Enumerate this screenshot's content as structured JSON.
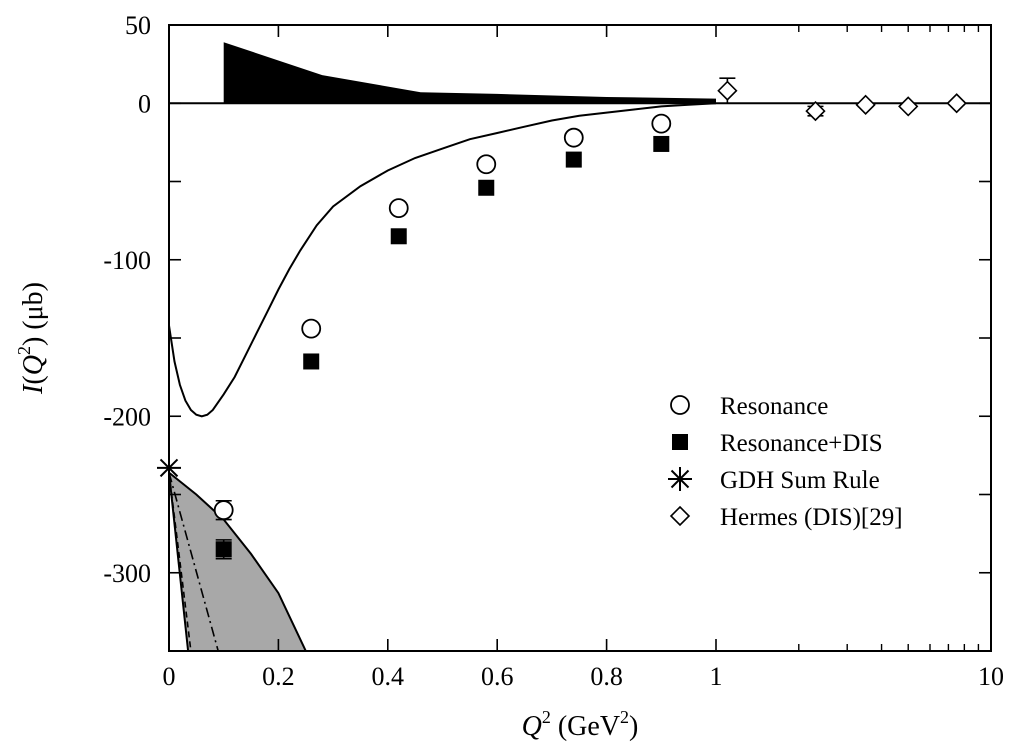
{
  "chart_data": {
    "type": "scatter",
    "title": "",
    "xlabel": {
      "var": "Q",
      "sup": "2",
      "unit_open": " (GeV",
      "unit_sup": "2",
      "unit_close": ")"
    },
    "ylabel": {
      "var": "I",
      "open": "(",
      "inner": "Q",
      "sup": "2",
      "close": ") (μb)"
    },
    "x_scale": "linear from 0 to 1, logarithmic from 1 to 10",
    "ylim": [
      -350,
      50
    ],
    "xticks": [
      {
        "value": 0,
        "label": "0"
      },
      {
        "value": 0.2,
        "label": "0.2"
      },
      {
        "value": 0.4,
        "label": "0.4"
      },
      {
        "value": 0.6,
        "label": "0.6"
      },
      {
        "value": 0.8,
        "label": "0.8"
      },
      {
        "value": 1,
        "label": "1"
      },
      {
        "value": 10,
        "label": "10"
      }
    ],
    "x_minor_ticks": [
      2,
      3,
      4,
      5,
      6,
      7,
      8,
      9
    ],
    "yticks": [
      {
        "value": 50,
        "label": "50"
      },
      {
        "value": 0,
        "label": "0"
      },
      {
        "value": -50,
        "label": ""
      },
      {
        "value": -100,
        "label": "-100"
      },
      {
        "value": -150,
        "label": ""
      },
      {
        "value": -200,
        "label": "-200"
      },
      {
        "value": -250,
        "label": ""
      },
      {
        "value": -300,
        "label": "-300"
      }
    ],
    "grid": false,
    "legend_position": "right, middle",
    "series": [
      {
        "name": "Resonance",
        "marker": "open-circle",
        "points": [
          {
            "x": 0.1,
            "y": -260,
            "err": 6
          },
          {
            "x": 0.26,
            "y": -144
          },
          {
            "x": 0.42,
            "y": -67
          },
          {
            "x": 0.58,
            "y": -39
          },
          {
            "x": 0.74,
            "y": -22
          },
          {
            "x": 0.9,
            "y": -13
          }
        ]
      },
      {
        "name": "Resonance+DIS",
        "marker": "filled-square",
        "points": [
          {
            "x": 0.1,
            "y": -285,
            "err": 6
          },
          {
            "x": 0.26,
            "y": -165
          },
          {
            "x": 0.42,
            "y": -85
          },
          {
            "x": 0.58,
            "y": -54
          },
          {
            "x": 0.74,
            "y": -36
          },
          {
            "x": 0.9,
            "y": -26
          }
        ]
      },
      {
        "name": "GDH Sum Rule",
        "marker": "asterisk",
        "points": [
          {
            "x": 0,
            "y": -233
          }
        ]
      },
      {
        "name": "Hermes (DIS)[29]",
        "marker": "open-diamond",
        "points": [
          {
            "x": 1.1,
            "y": 8,
            "err": 8
          },
          {
            "x": 2.3,
            "y": -5,
            "err": 3
          },
          {
            "x": 3.5,
            "y": -1,
            "err": 1
          },
          {
            "x": 5.0,
            "y": -2,
            "err": 1
          },
          {
            "x": 7.5,
            "y": 0,
            "err": 1
          }
        ]
      }
    ],
    "curve": {
      "style": "solid",
      "points": [
        [
          0,
          -142
        ],
        [
          0.01,
          -165
        ],
        [
          0.02,
          -180
        ],
        [
          0.03,
          -190
        ],
        [
          0.04,
          -196
        ],
        [
          0.05,
          -199
        ],
        [
          0.06,
          -200
        ],
        [
          0.07,
          -199
        ],
        [
          0.08,
          -196
        ],
        [
          0.1,
          -186
        ],
        [
          0.12,
          -175
        ],
        [
          0.14,
          -161
        ],
        [
          0.16,
          -147
        ],
        [
          0.18,
          -133
        ],
        [
          0.2,
          -119
        ],
        [
          0.22,
          -106
        ],
        [
          0.24,
          -94
        ],
        [
          0.27,
          -78
        ],
        [
          0.3,
          -66
        ],
        [
          0.35,
          -53
        ],
        [
          0.4,
          -43
        ],
        [
          0.45,
          -35
        ],
        [
          0.5,
          -29
        ],
        [
          0.55,
          -23
        ],
        [
          0.6,
          -19
        ],
        [
          0.65,
          -15
        ],
        [
          0.7,
          -11
        ],
        [
          0.75,
          -8
        ],
        [
          0.8,
          -6
        ],
        [
          0.85,
          -4
        ],
        [
          0.9,
          -2
        ],
        [
          0.95,
          -1
        ],
        [
          1.0,
          0
        ]
      ]
    },
    "uncertainty_band_top": {
      "fill": "#000000",
      "points": [
        [
          0.1,
          39
        ],
        [
          0.28,
          18
        ],
        [
          0.46,
          7
        ],
        [
          0.6,
          6
        ],
        [
          0.8,
          4
        ],
        [
          1.0,
          3
        ]
      ]
    },
    "band_lower_left": {
      "fill": "#a8a8a8",
      "outer_edge": [
        [
          0,
          -236
        ],
        [
          0.05,
          -250
        ],
        [
          0.1,
          -266
        ],
        [
          0.15,
          -288
        ],
        [
          0.2,
          -313
        ],
        [
          0.25,
          -350
        ]
      ],
      "inner_edge": [
        [
          0,
          -236
        ],
        [
          0.035,
          -350
        ]
      ],
      "dashed_line": [
        [
          0,
          -236
        ],
        [
          0.04,
          -350
        ]
      ],
      "dashdot_line": [
        [
          0,
          -236
        ],
        [
          0.09,
          -350
        ]
      ]
    }
  }
}
